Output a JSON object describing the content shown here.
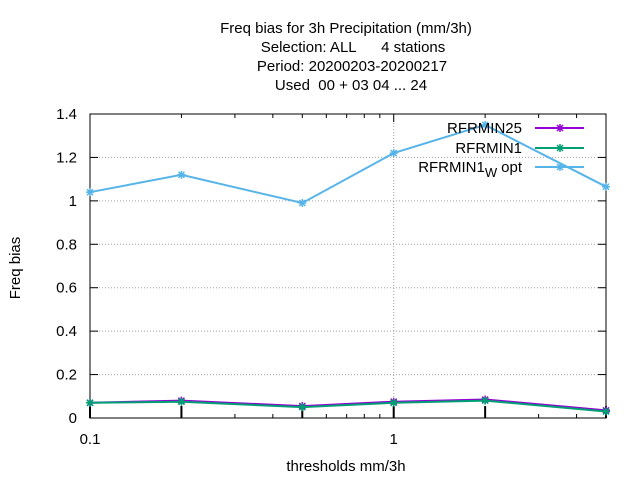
{
  "chart_data": {
    "type": "line",
    "title_lines": [
      "Freq bias  for 3h Precipitation (mm/3h)",
      "Selection: ALL      4 stations",
      "Period: 20200203-20200217",
      "Used  00 + 03 04 ... 24"
    ],
    "xlabel": "thresholds mm/3h",
    "ylabel": "Freq bias",
    "x_scale": "log",
    "xlim": [
      0.1,
      5
    ],
    "ylim": [
      0,
      1.4
    ],
    "x_ticks": [
      {
        "value": 0.1,
        "label": "0.1"
      },
      {
        "value": 1,
        "label": "1"
      }
    ],
    "x_minor_ticks": [
      0.2,
      0.3,
      0.4,
      0.5,
      0.6,
      0.7,
      0.8,
      0.9,
      2,
      3,
      4,
      5
    ],
    "y_ticks": [
      {
        "value": 0,
        "label": "0"
      },
      {
        "value": 0.2,
        "label": "0.2"
      },
      {
        "value": 0.4,
        "label": "0.4"
      },
      {
        "value": 0.6,
        "label": "0.6"
      },
      {
        "value": 0.8,
        "label": "0.8"
      },
      {
        "value": 1,
        "label": "1"
      },
      {
        "value": 1.2,
        "label": "1.2"
      },
      {
        "value": 1.4,
        "label": "1.4"
      }
    ],
    "grid": true,
    "legend_position": "top-right",
    "x": [
      0.1,
      0.2,
      0.5,
      1,
      2,
      5
    ],
    "series": [
      {
        "name": "RFRMIN25",
        "color": "#9400d3",
        "values": [
          0.07,
          0.08,
          0.055,
          0.075,
          0.085,
          0.035
        ]
      },
      {
        "name": "RFRMIN1",
        "color": "#009e73",
        "values": [
          0.07,
          0.075,
          0.05,
          0.07,
          0.08,
          0.03
        ]
      },
      {
        "name": "RFRMIN1",
        "name_subscript": "W",
        "name_suffix": "opt",
        "color": "#56b4e9",
        "values": [
          1.04,
          1.12,
          0.99,
          1.22,
          1.35,
          1.065
        ]
      }
    ]
  }
}
